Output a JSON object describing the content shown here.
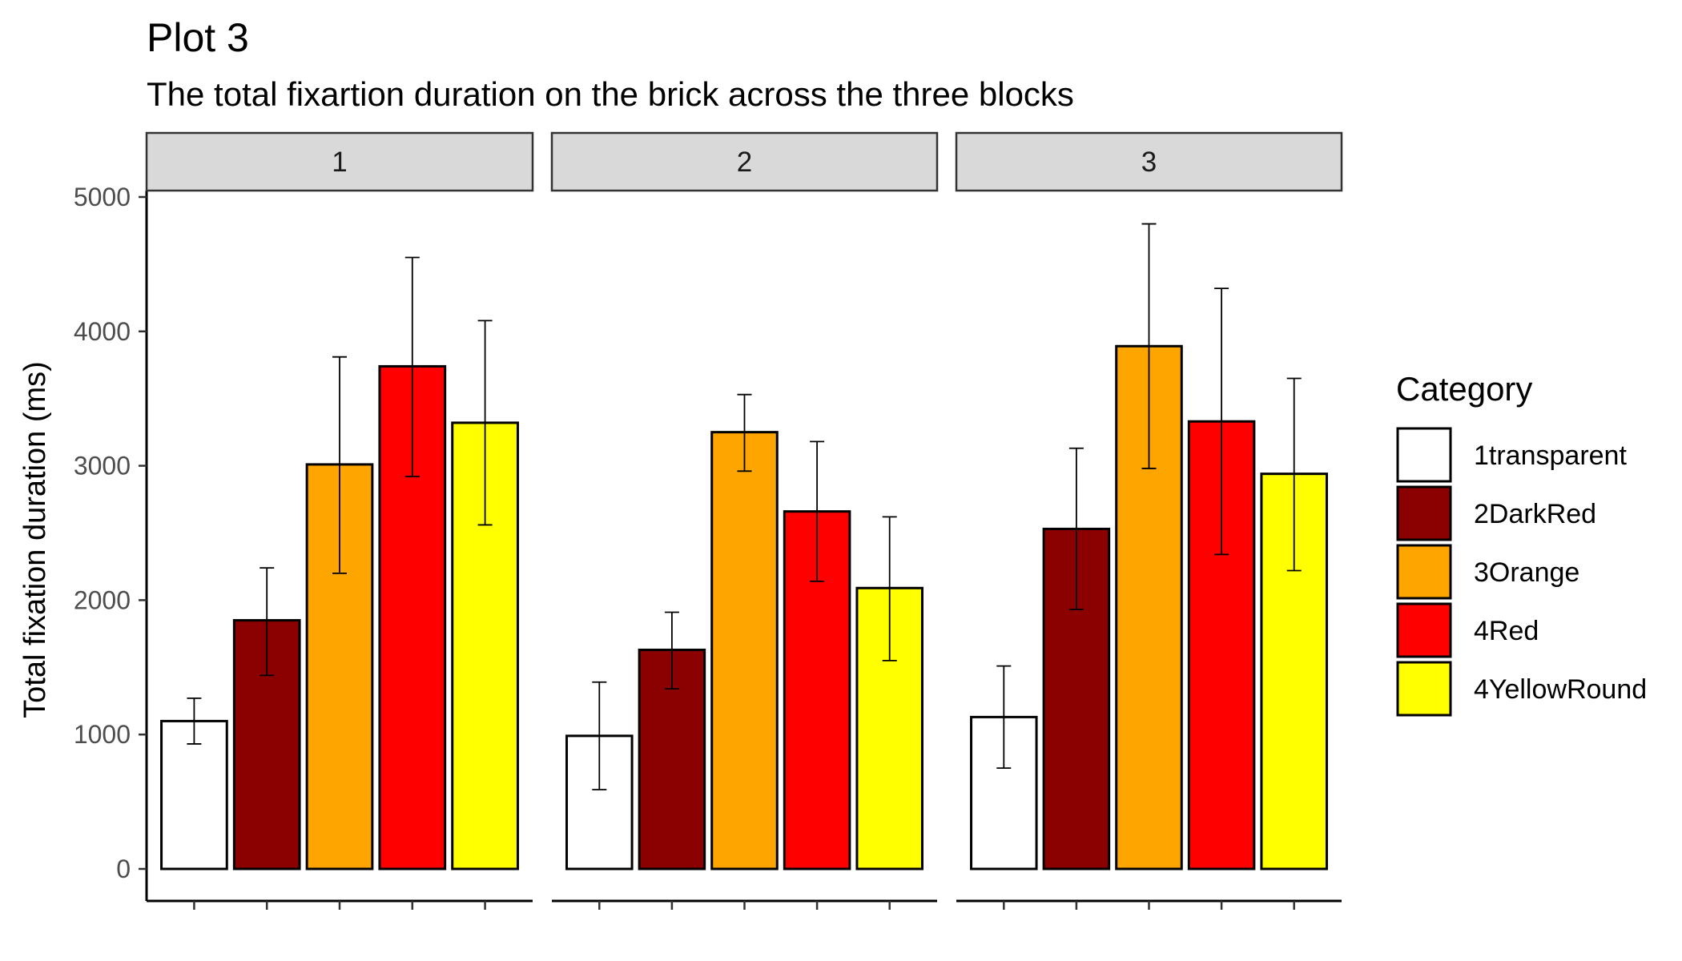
{
  "chart_data": {
    "type": "bar",
    "title": "Plot 3",
    "subtitle": "The total fixartion duration on the brick across the three blocks",
    "ylabel": "Total fixation duration (ms)",
    "xlabel": "",
    "ylim": [
      0,
      5000
    ],
    "yticks": [
      0,
      1000,
      2000,
      3000,
      4000,
      5000
    ],
    "grid": false,
    "legend": {
      "title": "Category",
      "placement": "right",
      "entries": [
        "1transparent",
        "2DarkRed",
        "3Orange",
        "4Red",
        "4YellowRound"
      ]
    },
    "categories": [
      "1transparent",
      "2DarkRed",
      "3Orange",
      "4Red",
      "4YellowRound"
    ],
    "colors": [
      "#ffffff",
      "#8b0000",
      "#ffa500",
      "#ff0000",
      "#ffff00"
    ],
    "facets": [
      {
        "label": "1",
        "values": [
          1100,
          1850,
          3010,
          3740,
          3320
        ],
        "err_low": [
          930,
          1440,
          2200,
          2920,
          2560
        ],
        "err_high": [
          1270,
          2240,
          3810,
          4550,
          4080
        ]
      },
      {
        "label": "2",
        "values": [
          990,
          1630,
          3250,
          2660,
          2090
        ],
        "err_low": [
          590,
          1340,
          2960,
          2140,
          1550
        ],
        "err_high": [
          1390,
          1910,
          3530,
          3180,
          2620
        ]
      },
      {
        "label": "3",
        "values": [
          1130,
          2530,
          3890,
          3330,
          2940
        ],
        "err_low": [
          750,
          1930,
          2980,
          2340,
          2220
        ],
        "err_high": [
          1510,
          3130,
          4800,
          4320,
          3650
        ]
      }
    ]
  }
}
